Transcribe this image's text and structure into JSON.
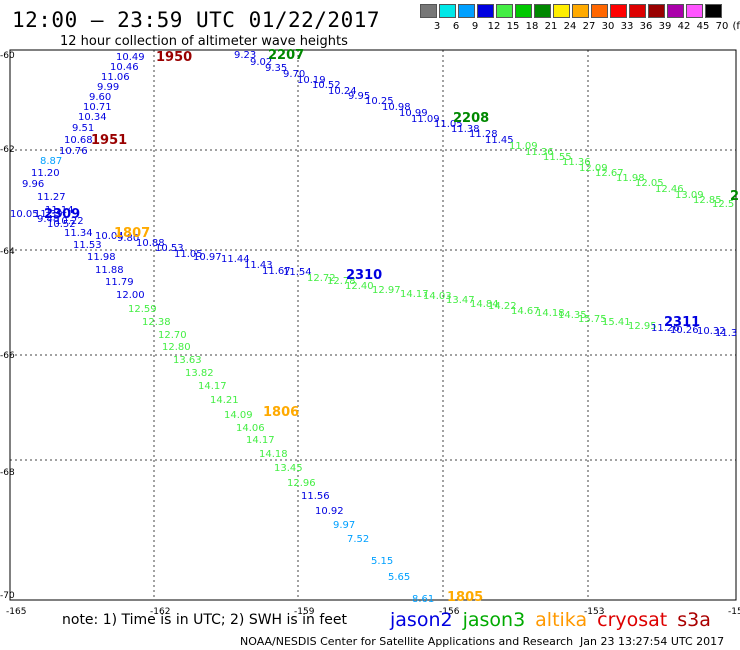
{
  "title": "12:00 – 23:59 UTC 01/22/2017",
  "subtitle": "12 hour collection of altimeter wave heights",
  "scale": {
    "unit": "(ft)",
    "items": [
      {
        "label": "3",
        "color": "#777777"
      },
      {
        "label": "6",
        "color": "#00e8e8"
      },
      {
        "label": "9",
        "color": "#00a0ff"
      },
      {
        "label": "12",
        "color": "#0000e0"
      },
      {
        "label": "15",
        "color": "#44ee44"
      },
      {
        "label": "18",
        "color": "#00c800"
      },
      {
        "label": "21",
        "color": "#008800"
      },
      {
        "label": "24",
        "color": "#ffee00"
      },
      {
        "label": "27",
        "color": "#ffaa00"
      },
      {
        "label": "30",
        "color": "#ff6600"
      },
      {
        "label": "33",
        "color": "#ff0000"
      },
      {
        "label": "36",
        "color": "#dd0000"
      },
      {
        "label": "39",
        "color": "#990000"
      },
      {
        "label": "42",
        "color": "#aa00aa"
      },
      {
        "label": "45",
        "color": "#ff55ff"
      },
      {
        "label": "70",
        "color": "#000000"
      }
    ]
  },
  "axes": {
    "x_ticks": [
      "-165",
      "-162",
      "-159",
      "-156",
      "-153",
      "-15"
    ],
    "y_ticks": [
      "-60",
      "-62",
      "-64",
      "-66",
      "-68",
      "-70"
    ]
  },
  "time_labels": [
    {
      "text": "1950",
      "color": "#990000"
    },
    {
      "text": "1951",
      "color": "#990000"
    },
    {
      "text": "2207",
      "color": "#008800"
    },
    {
      "text": "2208",
      "color": "#008800"
    },
    {
      "text": "2309",
      "color": "#0000e0"
    },
    {
      "text": "1807",
      "color": "#ffaa00"
    },
    {
      "text": "2310",
      "color": "#0000e0"
    },
    {
      "text": "2311",
      "color": "#0000e0"
    },
    {
      "text": "1806",
      "color": "#ffaa00"
    },
    {
      "text": "1805",
      "color": "#ffaa00"
    },
    {
      "text": "2",
      "color": "#008800"
    }
  ],
  "observations": {
    "track_a": [
      "10.49",
      "10.46",
      "11.06",
      "9.99",
      "9.60",
      "10.71",
      "10.34",
      "9.51",
      "10.68",
      "10.76",
      "8.87",
      "11.20",
      "9.96",
      "11.27",
      "11.14",
      "11.39",
      "10.52",
      "10.05",
      "9.48",
      "10.22",
      "11.34",
      "11.53",
      "11.98",
      "11.88",
      "11.79",
      "12.00"
    ],
    "track_b": [
      "9.23",
      "9.02",
      "9.35",
      "9.70",
      "10.19",
      "10.52",
      "10.24",
      "9.95",
      "10.25",
      "10.98",
      "10.99",
      "11.09",
      "11.05",
      "11.38",
      "11.28",
      "11.45",
      "11.09",
      "11.36",
      "11.55",
      "11.36",
      "12.09",
      "12.67",
      "11.98",
      "12.05",
      "12.46",
      "13.09",
      "12.85",
      "12.5"
    ],
    "track_c": [
      "10.04",
      "9.80",
      "10.88",
      "10.53",
      "11.05",
      "10.97",
      "11.44",
      "11.43",
      "11.67",
      "11.54",
      "12.72",
      "12.78",
      "12.40",
      "12.97",
      "14.17",
      "14.03",
      "13.47",
      "14.84",
      "14.22",
      "14.67",
      "14.18",
      "14.35",
      "15.75",
      "15.41",
      "12.95",
      "11.26",
      "10.26",
      "10.32",
      "11.3"
    ],
    "track_d": [
      "12.59",
      "12.38",
      "12.70",
      "12.80",
      "13.63",
      "13.82",
      "14.17",
      "14.21",
      "14.09",
      "14.06",
      "14.17",
      "14.18",
      "13.45",
      "12.96",
      "11.56",
      "10.92",
      "9.97",
      "7.52",
      "5.15",
      "5.65",
      "8.61"
    ]
  },
  "note": "note:  1) Time is in UTC;  2) SWH is in feet",
  "legend": [
    {
      "name": "jason2",
      "color": "#0000e0"
    },
    {
      "name": "jason3",
      "color": "#00aa00"
    },
    {
      "name": "altika",
      "color": "#ff9900"
    },
    {
      "name": "cryosat",
      "color": "#dd0000"
    },
    {
      "name": "s3a",
      "color": "#aa0000"
    }
  ],
  "credit": "NOAA/NESDIS Center for Satellite Applications and Research",
  "timestamp": "Jan 23 13:27:54 UTC 2017"
}
